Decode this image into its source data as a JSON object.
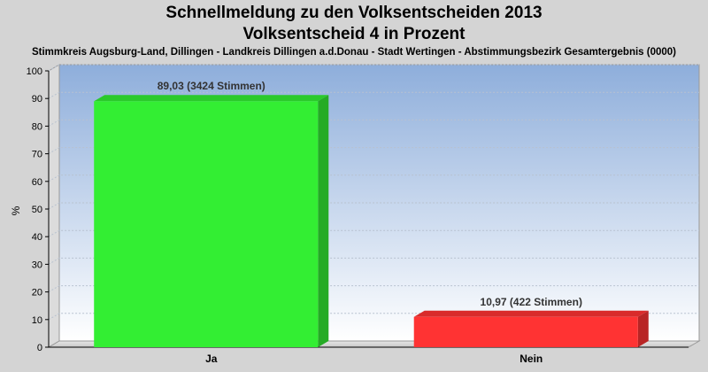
{
  "chart_data": {
    "type": "bar",
    "title_lines": [
      "Schnellmeldung zu den Volksentscheiden 2013",
      "Volksentscheid 4 in Prozent"
    ],
    "subtitle": "Stimmkreis Augsburg-Land, Dillingen - Landkreis Dillingen a.d.Donau - Stadt Wertingen - Abstimmungsbezirk Gesamtergebnis (0000)",
    "ylabel": "%",
    "xlabel": "",
    "categories": [
      "Ja",
      "Nein"
    ],
    "values": [
      89.03,
      10.97
    ],
    "data_labels": [
      "89,03 (3424 Stimmen)",
      "10,97 (422 Stimmen)"
    ],
    "colors": [
      "#33ee33",
      "#ff3333"
    ],
    "ylim": [
      0,
      100
    ],
    "yticks": [
      0,
      10,
      20,
      30,
      40,
      50,
      60,
      70,
      80,
      90,
      100
    ],
    "grid": true
  }
}
